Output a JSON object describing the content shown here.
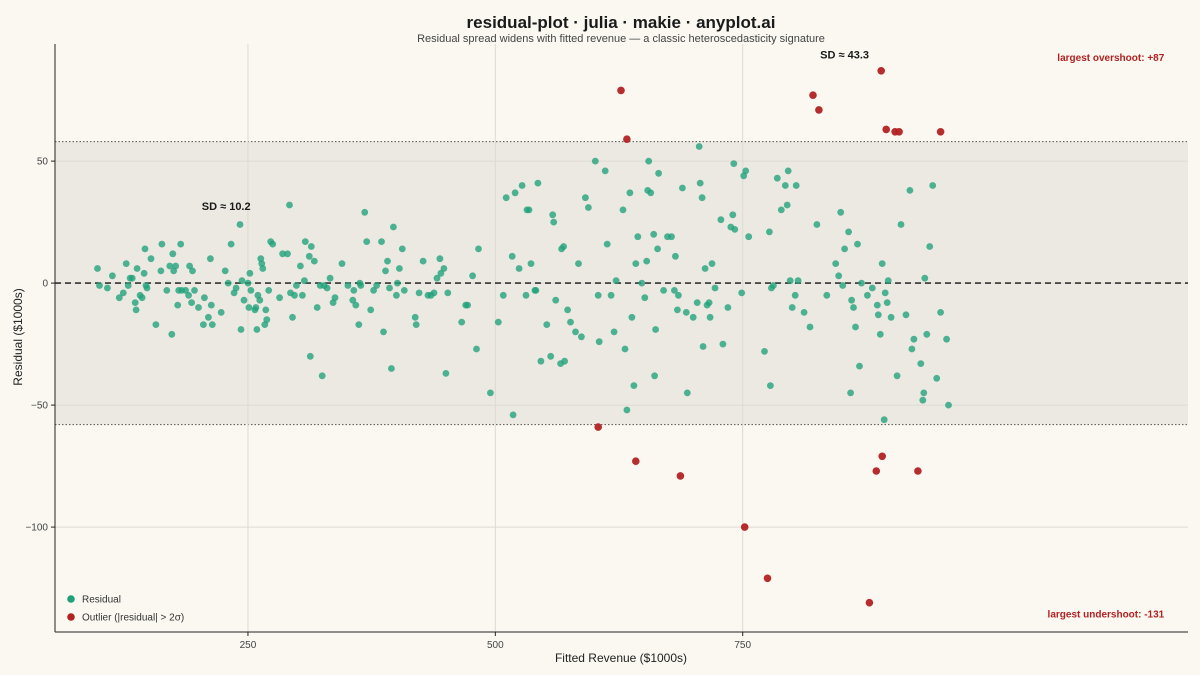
{
  "chart_data": {
    "type": "scatter",
    "title": "residual-plot · julia · makie · anyplot.ai",
    "subtitle": "Residual spread widens with fitted revenue — a classic heteroscedasticity signature",
    "xlabel": "Fitted Revenue ($1000s)",
    "ylabel": "Residual ($1000s)",
    "xlim": [
      55,
      1200
    ],
    "ylim": [
      -143,
      98
    ],
    "xticks": [
      250,
      500,
      750
    ],
    "xtick_labels": [
      "250",
      "500",
      "750"
    ],
    "yticks": [
      -100,
      -50,
      0,
      50
    ],
    "ytick_labels": [
      "−100",
      "−50",
      "0",
      "50"
    ],
    "grid": true,
    "zero_line": 0,
    "band": {
      "lower": -58,
      "upper": 58
    },
    "annotations": [
      {
        "text": "SD ≈ 10.2",
        "x": 228,
        "y": 30,
        "style": "dark"
      },
      {
        "text": "SD ≈ 43.3",
        "x": 853,
        "y": 92,
        "style": "dark"
      },
      {
        "text": "largest overshoot: +87",
        "x": 1122,
        "y": 91,
        "style": "red"
      },
      {
        "text": "largest undershoot: -131",
        "x": 1117,
        "y": -137,
        "style": "red"
      }
    ],
    "legend": {
      "position": "bottom-left",
      "entries": [
        {
          "label": "Residual",
          "color": "#1FA27A"
        },
        {
          "label": "Outlier (|residual| > 2σ)",
          "color": "#B22222"
        }
      ]
    },
    "colors": {
      "residual": "#1FA27A",
      "outlier": "#B22222"
    },
    "series": [
      {
        "name": "Residual",
        "points": [
          [
            98,
            6
          ],
          [
            100,
            -1
          ],
          [
            108,
            -2
          ],
          [
            113,
            3
          ],
          [
            120,
            -6
          ],
          [
            124,
            -4
          ],
          [
            127,
            8
          ],
          [
            129,
            -1
          ],
          [
            131,
            2
          ],
          [
            133,
            2
          ],
          [
            136,
            -8
          ],
          [
            137,
            -11
          ],
          [
            138,
            6
          ],
          [
            141,
            -5
          ],
          [
            143,
            -6
          ],
          [
            145,
            4
          ],
          [
            146,
            14
          ],
          [
            147,
            -1
          ],
          [
            148,
            -2
          ],
          [
            152,
            10
          ],
          [
            157,
            -17
          ],
          [
            162,
            5
          ],
          [
            163,
            16
          ],
          [
            168,
            -3
          ],
          [
            171,
            7
          ],
          [
            173,
            -21
          ],
          [
            174,
            12
          ],
          [
            175,
            5
          ],
          [
            177,
            7
          ],
          [
            179,
            -9
          ],
          [
            180,
            -3
          ],
          [
            182,
            16
          ],
          [
            183,
            -3
          ],
          [
            187,
            -3
          ],
          [
            190,
            -5
          ],
          [
            191,
            7
          ],
          [
            193,
            -8
          ],
          [
            194,
            5
          ],
          [
            196,
            -3
          ],
          [
            200,
            -10
          ],
          [
            205,
            -17
          ],
          [
            206,
            -6
          ],
          [
            210,
            -14
          ],
          [
            212,
            10
          ],
          [
            213,
            -9
          ],
          [
            214,
            -17
          ],
          [
            223,
            -12
          ],
          [
            227,
            5
          ],
          [
            230,
            0
          ],
          [
            233,
            16
          ],
          [
            236,
            -4
          ],
          [
            238,
            -2
          ],
          [
            242,
            24
          ],
          [
            243,
            -19
          ],
          [
            244,
            1
          ],
          [
            246,
            -7
          ],
          [
            250,
            0
          ],
          [
            251,
            -10
          ],
          [
            252,
            4
          ],
          [
            253,
            -3
          ],
          [
            257,
            -11
          ],
          [
            258,
            -10
          ],
          [
            259,
            -19
          ],
          [
            260,
            -5
          ],
          [
            262,
            -7
          ],
          [
            263,
            10
          ],
          [
            264,
            8
          ],
          [
            265,
            6
          ],
          [
            267,
            -17
          ],
          [
            268,
            -11
          ],
          [
            269,
            -15
          ],
          [
            271,
            -3
          ],
          [
            273,
            17
          ],
          [
            275,
            16
          ],
          [
            282,
            -6
          ],
          [
            285,
            12
          ],
          [
            290,
            12
          ],
          [
            292,
            32
          ],
          [
            293,
            -4
          ],
          [
            295,
            -14
          ],
          [
            297,
            -5
          ],
          [
            299,
            -1
          ],
          [
            303,
            7
          ],
          [
            305,
            -5
          ],
          [
            307,
            1
          ],
          [
            308,
            17
          ],
          [
            312,
            11
          ],
          [
            313,
            -30
          ],
          [
            314,
            15
          ],
          [
            317,
            9
          ],
          [
            320,
            -10
          ],
          [
            323,
            -1
          ],
          [
            325,
            -38
          ],
          [
            327,
            -1
          ],
          [
            330,
            -2
          ],
          [
            333,
            2
          ],
          [
            336,
            -8
          ],
          [
            338,
            -6
          ],
          [
            345,
            8
          ],
          [
            351,
            -1
          ],
          [
            356,
            -7
          ],
          [
            357,
            -3
          ],
          [
            359,
            -9
          ],
          [
            362,
            -17
          ],
          [
            363,
            0
          ],
          [
            364,
            -1
          ],
          [
            368,
            29
          ],
          [
            370,
            17
          ],
          [
            374,
            -11
          ],
          [
            377,
            -3
          ],
          [
            380,
            -1
          ],
          [
            385,
            17
          ],
          [
            387,
            -20
          ],
          [
            389,
            5
          ],
          [
            391,
            9
          ],
          [
            393,
            -2
          ],
          [
            395,
            -35
          ],
          [
            397,
            23
          ],
          [
            400,
            -5
          ],
          [
            401,
            0
          ],
          [
            403,
            6
          ],
          [
            406,
            14
          ],
          [
            408,
            -3
          ],
          [
            419,
            -14
          ],
          [
            420,
            -17
          ],
          [
            423,
            -4
          ],
          [
            427,
            9
          ],
          [
            432,
            -5
          ],
          [
            435,
            -5
          ],
          [
            438,
            -4
          ],
          [
            441,
            2
          ],
          [
            444,
            10
          ],
          [
            445,
            4
          ],
          [
            448,
            6
          ],
          [
            450,
            -37
          ],
          [
            452,
            -4
          ],
          [
            466,
            -16
          ],
          [
            470,
            -9
          ],
          [
            472,
            -9
          ],
          [
            477,
            3
          ],
          [
            481,
            -27
          ],
          [
            483,
            14
          ],
          [
            495,
            -45
          ],
          [
            503,
            -16
          ],
          [
            508,
            -5
          ],
          [
            511,
            35
          ],
          [
            517,
            11
          ],
          [
            518,
            -54
          ],
          [
            520,
            37
          ],
          [
            524,
            6
          ],
          [
            527,
            40
          ],
          [
            531,
            -5
          ],
          [
            532,
            30
          ],
          [
            534,
            30
          ],
          [
            536,
            8
          ],
          [
            540,
            -3
          ],
          [
            541,
            -3
          ],
          [
            543,
            41
          ],
          [
            546,
            -32
          ],
          [
            552,
            -17
          ],
          [
            556,
            -30
          ],
          [
            558,
            28
          ],
          [
            559,
            25
          ],
          [
            561,
            -7
          ],
          [
            566,
            -33
          ],
          [
            567,
            14
          ],
          [
            569,
            15
          ],
          [
            570,
            -32
          ],
          [
            573,
            -11
          ],
          [
            576,
            -16
          ],
          [
            581,
            -20
          ],
          [
            584,
            8
          ],
          [
            587,
            -22
          ],
          [
            591,
            35
          ],
          [
            594,
            31
          ],
          [
            601,
            50
          ],
          [
            604,
            -5
          ],
          [
            605,
            -24
          ],
          [
            611,
            46
          ],
          [
            613,
            16
          ],
          [
            617,
            -5
          ],
          [
            620,
            -20
          ],
          [
            622,
            1
          ],
          [
            629,
            30
          ],
          [
            631,
            -27
          ],
          [
            633,
            -52
          ],
          [
            636,
            37
          ],
          [
            638,
            -14
          ],
          [
            640,
            -42
          ],
          [
            642,
            8
          ],
          [
            644,
            19
          ],
          [
            648,
            0
          ],
          [
            651,
            -6
          ],
          [
            653,
            9
          ],
          [
            654,
            38
          ],
          [
            655,
            50
          ],
          [
            657,
            37
          ],
          [
            660,
            20
          ],
          [
            661,
            -38
          ],
          [
            662,
            -19
          ],
          [
            664,
            14
          ],
          [
            665,
            45
          ],
          [
            670,
            -3
          ],
          [
            674,
            19
          ],
          [
            678,
            19
          ],
          [
            681,
            -3
          ],
          [
            682,
            11
          ],
          [
            684,
            -11
          ],
          [
            685,
            -5
          ],
          [
            689,
            39
          ],
          [
            693,
            -12
          ],
          [
            694,
            -45
          ],
          [
            700,
            -14
          ],
          [
            704,
            -8
          ],
          [
            706,
            56
          ],
          [
            707,
            41
          ],
          [
            709,
            35
          ],
          [
            710,
            -26
          ],
          [
            712,
            6
          ],
          [
            714,
            -9
          ],
          [
            716,
            -8
          ],
          [
            717,
            -14
          ],
          [
            719,
            8
          ],
          [
            722,
            -2
          ],
          [
            728,
            26
          ],
          [
            730,
            -25
          ],
          [
            735,
            -10
          ],
          [
            738,
            23
          ],
          [
            740,
            28
          ],
          [
            741,
            49
          ],
          [
            742,
            22
          ],
          [
            749,
            -4
          ],
          [
            751,
            44
          ],
          [
            753,
            46
          ],
          [
            756,
            19
          ],
          [
            772,
            -28
          ],
          [
            777,
            21
          ],
          [
            778,
            -42
          ],
          [
            779,
            -2
          ],
          [
            781,
            -1
          ],
          [
            785,
            43
          ],
          [
            789,
            30
          ],
          [
            793,
            40
          ],
          [
            795,
            32
          ],
          [
            796,
            46
          ],
          [
            798,
            1
          ],
          [
            800,
            -10
          ],
          [
            803,
            -5
          ],
          [
            804,
            40
          ],
          [
            806,
            1
          ],
          [
            812,
            -12
          ],
          [
            818,
            -18
          ],
          [
            825,
            24
          ],
          [
            835,
            -5
          ],
          [
            844,
            8
          ],
          [
            847,
            3
          ],
          [
            849,
            29
          ],
          [
            851,
            -1
          ],
          [
            853,
            14
          ],
          [
            857,
            21
          ],
          [
            859,
            -45
          ],
          [
            860,
            -7
          ],
          [
            862,
            -10
          ],
          [
            864,
            -18
          ],
          [
            866,
            16
          ],
          [
            868,
            -34
          ],
          [
            870,
            0
          ],
          [
            876,
            -5
          ],
          [
            881,
            -2
          ],
          [
            886,
            -9
          ],
          [
            887,
            -13
          ],
          [
            889,
            -21
          ],
          [
            891,
            8
          ],
          [
            893,
            -56
          ],
          [
            894,
            -4
          ],
          [
            896,
            -8
          ],
          [
            897,
            1
          ],
          [
            900,
            -14
          ],
          [
            906,
            -38
          ],
          [
            910,
            24
          ],
          [
            915,
            -13
          ],
          [
            919,
            38
          ],
          [
            921,
            -27
          ],
          [
            923,
            -23
          ],
          [
            930,
            -33
          ],
          [
            932,
            -48
          ],
          [
            933,
            -45
          ],
          [
            934,
            2
          ],
          [
            936,
            -21
          ],
          [
            939,
            15
          ],
          [
            942,
            40
          ],
          [
            946,
            -39
          ],
          [
            950,
            -12
          ],
          [
            956,
            -23
          ],
          [
            958,
            -50
          ]
        ]
      },
      {
        "name": "Outlier (|residual| > 2σ)",
        "points": [
          [
            604,
            -59
          ],
          [
            627,
            79
          ],
          [
            633,
            59
          ],
          [
            642,
            -73
          ],
          [
            687,
            -79
          ],
          [
            752,
            -100
          ],
          [
            775,
            -121
          ],
          [
            821,
            77
          ],
          [
            827,
            71
          ],
          [
            878,
            -131
          ],
          [
            885,
            -77
          ],
          [
            890,
            87
          ],
          [
            891,
            -71
          ],
          [
            895,
            63
          ],
          [
            904,
            62
          ],
          [
            908,
            62
          ],
          [
            927,
            -77
          ],
          [
            950,
            62
          ]
        ]
      }
    ]
  }
}
